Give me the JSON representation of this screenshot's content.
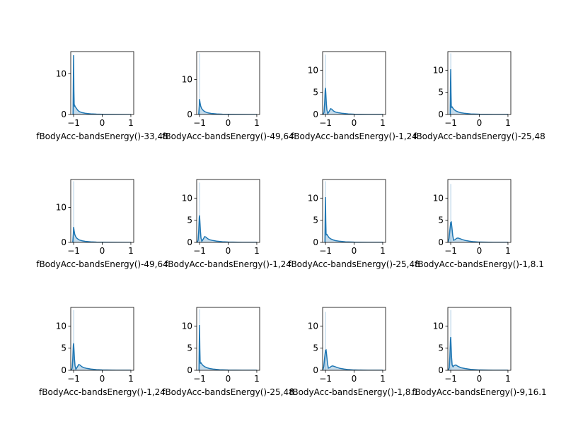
{
  "figure": {
    "background": "#ffffff"
  },
  "colors": {
    "line": "#1f77b4",
    "fill": "#1f77b4",
    "axes": "#000000"
  },
  "chart_data": [
    {
      "type": "area",
      "xlabel": "fBodyAcc-bandsEnergy()-33,48",
      "xlim": [
        -1.1,
        1.1
      ],
      "ylim": [
        0,
        15.5
      ],
      "xticks": [
        -1,
        0,
        1
      ],
      "yticks": [
        0,
        10
      ],
      "x": [
        -1.02,
        -1.01,
        -1.0,
        -0.99,
        -0.98,
        -0.97,
        -0.96,
        -0.95,
        -0.9,
        -0.85,
        -0.8,
        -0.7,
        -0.6,
        -0.5,
        -0.4,
        -0.2,
        0.0,
        0.5,
        1.0
      ],
      "y": [
        0,
        8,
        14.6,
        6,
        2.4,
        2.1,
        2.2,
        2.0,
        1.5,
        1.0,
        0.7,
        0.45,
        0.3,
        0.22,
        0.15,
        0.08,
        0.05,
        0.02,
        0.01
      ],
      "hist": {
        "width": 0.02,
        "bars": [
          [
            -1.0,
            14.6
          ]
        ]
      }
    },
    {
      "type": "area",
      "xlabel": "fBodyAcc-bandsEnergy()-49,64",
      "xlim": [
        -1.1,
        1.1
      ],
      "ylim": [
        0,
        18
      ],
      "xticks": [
        -1,
        0,
        1
      ],
      "yticks": [
        0,
        10
      ],
      "x": [
        -1.03,
        -1.01,
        -1.0,
        -0.98,
        -0.96,
        -0.93,
        -0.9,
        -0.85,
        -0.8,
        -0.7,
        -0.6,
        -0.4,
        -0.2,
        0.0,
        0.5,
        1.0
      ],
      "y": [
        0,
        2.5,
        4.4,
        3.2,
        2.4,
        1.8,
        1.4,
        1.0,
        0.75,
        0.45,
        0.3,
        0.15,
        0.08,
        0.05,
        0.02,
        0.01
      ],
      "hist": {
        "width": 0.02,
        "bars": [
          [
            -1.0,
            17.5
          ]
        ]
      }
    },
    {
      "type": "area",
      "xlabel": "fBodyAcc-bandsEnergy()-1,24",
      "xlim": [
        -1.1,
        1.1
      ],
      "ylim": [
        0,
        14.2
      ],
      "xticks": [
        -1,
        0,
        1
      ],
      "yticks": [
        0,
        5,
        10
      ],
      "x": [
        -1.08,
        -1.05,
        -1.03,
        -1.01,
        -1.0,
        -0.99,
        -0.97,
        -0.95,
        -0.92,
        -0.88,
        -0.82,
        -0.78,
        -0.72,
        -0.65,
        -0.55,
        -0.4,
        -0.2,
        0.0,
        0.5,
        1.0
      ],
      "y": [
        0,
        0.5,
        2.5,
        5.5,
        6.0,
        5.0,
        2.5,
        1.0,
        0.2,
        0.6,
        1.3,
        1.2,
        0.8,
        0.55,
        0.4,
        0.25,
        0.12,
        0.06,
        0.02,
        0.01
      ],
      "hist": {
        "width": 0.02,
        "bars": [
          [
            -1.0,
            13.5
          ]
        ]
      }
    },
    {
      "type": "area",
      "xlabel": "fBodyAcc-bandsEnergy()-25,48",
      "xlim": [
        -1.1,
        1.1
      ],
      "ylim": [
        0,
        14.2
      ],
      "xticks": [
        -1,
        0,
        1
      ],
      "yticks": [
        0,
        5,
        10
      ],
      "x": [
        -1.02,
        -1.01,
        -1.0,
        -0.99,
        -0.98,
        -0.97,
        -0.95,
        -0.92,
        -0.88,
        -0.82,
        -0.75,
        -0.65,
        -0.5,
        -0.3,
        0.0,
        0.5,
        1.0
      ],
      "y": [
        0,
        6,
        10.2,
        5,
        2.0,
        1.6,
        1.7,
        1.4,
        1.1,
        0.8,
        0.6,
        0.4,
        0.25,
        0.12,
        0.05,
        0.02,
        0.01
      ],
      "hist": {
        "width": 0.02,
        "bars": [
          [
            -1.0,
            13.8
          ]
        ]
      }
    },
    {
      "type": "area",
      "xlabel": "fBodyAcc-bandsEnergy()-49,64",
      "xlim": [
        -1.1,
        1.1
      ],
      "ylim": [
        0,
        18
      ],
      "xticks": [
        -1,
        0,
        1
      ],
      "yticks": [
        0,
        10
      ],
      "x": [
        -1.03,
        -1.01,
        -1.0,
        -0.98,
        -0.96,
        -0.93,
        -0.9,
        -0.85,
        -0.8,
        -0.7,
        -0.6,
        -0.4,
        -0.2,
        0.0,
        0.5,
        1.0
      ],
      "y": [
        0,
        2.5,
        4.4,
        3.2,
        2.3,
        1.7,
        1.3,
        0.95,
        0.7,
        0.45,
        0.3,
        0.15,
        0.08,
        0.05,
        0.02,
        0.01
      ],
      "hist": {
        "width": 0.02,
        "bars": [
          [
            -1.0,
            17.5
          ]
        ]
      }
    },
    {
      "type": "area",
      "xlabel": "fBodyAcc-bandsEnergy()-1,24",
      "xlim": [
        -1.1,
        1.1
      ],
      "ylim": [
        0,
        14.2
      ],
      "xticks": [
        -1,
        0,
        1
      ],
      "yticks": [
        0,
        5,
        10
      ],
      "x": [
        -1.08,
        -1.05,
        -1.03,
        -1.01,
        -1.0,
        -0.99,
        -0.97,
        -0.95,
        -0.92,
        -0.88,
        -0.82,
        -0.78,
        -0.72,
        -0.65,
        -0.55,
        -0.4,
        -0.2,
        0.0,
        0.5,
        1.0
      ],
      "y": [
        0,
        0.5,
        2.5,
        5.6,
        6.1,
        5.0,
        2.6,
        1.0,
        0.25,
        0.65,
        1.3,
        1.2,
        0.85,
        0.6,
        0.45,
        0.28,
        0.14,
        0.07,
        0.02,
        0.01
      ],
      "hist": {
        "width": 0.02,
        "bars": [
          [
            -1.0,
            13.5
          ]
        ]
      }
    },
    {
      "type": "area",
      "xlabel": "fBodyAcc-bandsEnergy()-25,48",
      "xlim": [
        -1.1,
        1.1
      ],
      "ylim": [
        0,
        14.2
      ],
      "xticks": [
        -1,
        0,
        1
      ],
      "yticks": [
        0,
        5,
        10
      ],
      "x": [
        -1.02,
        -1.01,
        -1.0,
        -0.99,
        -0.98,
        -0.97,
        -0.95,
        -0.92,
        -0.88,
        -0.82,
        -0.75,
        -0.65,
        -0.5,
        -0.3,
        0.0,
        0.5,
        1.0
      ],
      "y": [
        0,
        6,
        10.2,
        5,
        2.0,
        1.7,
        1.8,
        1.5,
        1.1,
        0.8,
        0.6,
        0.4,
        0.25,
        0.12,
        0.05,
        0.02,
        0.01
      ],
      "hist": {
        "width": 0.02,
        "bars": [
          [
            -1.0,
            13.8
          ]
        ]
      }
    },
    {
      "type": "area",
      "xlabel": "fBodyAcc-bandsEnergy()-1,8.1",
      "xlim": [
        -1.1,
        1.1
      ],
      "ylim": [
        0,
        14.2
      ],
      "xticks": [
        -1,
        0,
        1
      ],
      "yticks": [
        0,
        5,
        10
      ],
      "x": [
        -1.1,
        -1.06,
        -1.03,
        -1.0,
        -0.98,
        -0.96,
        -0.93,
        -0.9,
        -0.85,
        -0.8,
        -0.75,
        -0.68,
        -0.6,
        -0.5,
        -0.35,
        -0.2,
        0.0,
        0.5,
        1.0
      ],
      "y": [
        0,
        0.8,
        2.8,
        4.5,
        4.6,
        3.5,
        1.6,
        0.5,
        0.6,
        0.9,
        1.0,
        0.85,
        0.65,
        0.45,
        0.28,
        0.15,
        0.07,
        0.02,
        0.01
      ],
      "hist": {
        "width": 0.02,
        "bars": [
          [
            -1.0,
            13.2
          ]
        ]
      }
    },
    {
      "type": "area",
      "xlabel": "fBodyAcc-bandsEnergy()-1,24",
      "xlim": [
        -1.1,
        1.1
      ],
      "ylim": [
        0,
        14.2
      ],
      "xticks": [
        -1,
        0,
        1
      ],
      "yticks": [
        0,
        5,
        10
      ],
      "x": [
        -1.08,
        -1.05,
        -1.03,
        -1.01,
        -1.0,
        -0.99,
        -0.97,
        -0.95,
        -0.92,
        -0.88,
        -0.82,
        -0.78,
        -0.72,
        -0.65,
        -0.55,
        -0.4,
        -0.2,
        0.0,
        0.5,
        1.0
      ],
      "y": [
        0,
        0.5,
        2.5,
        5.6,
        6.1,
        5.0,
        2.6,
        1.0,
        0.25,
        0.65,
        1.3,
        1.2,
        0.85,
        0.6,
        0.45,
        0.28,
        0.14,
        0.07,
        0.02,
        0.01
      ],
      "hist": {
        "width": 0.02,
        "bars": [
          [
            -1.0,
            13.6
          ]
        ]
      }
    },
    {
      "type": "area",
      "xlabel": "fBodyAcc-bandsEnergy()-25,48",
      "xlim": [
        -1.1,
        1.1
      ],
      "ylim": [
        0,
        14.2
      ],
      "xticks": [
        -1,
        0,
        1
      ],
      "yticks": [
        0,
        5,
        10
      ],
      "x": [
        -1.02,
        -1.01,
        -1.0,
        -0.99,
        -0.98,
        -0.97,
        -0.95,
        -0.92,
        -0.88,
        -0.82,
        -0.75,
        -0.65,
        -0.5,
        -0.3,
        0.0,
        0.5,
        1.0
      ],
      "y": [
        0,
        6,
        10.2,
        5,
        2.0,
        1.6,
        1.7,
        1.4,
        1.1,
        0.8,
        0.6,
        0.4,
        0.25,
        0.12,
        0.05,
        0.02,
        0.01
      ],
      "hist": {
        "width": 0.02,
        "bars": [
          [
            -1.0,
            13.8
          ]
        ]
      }
    },
    {
      "type": "area",
      "xlabel": "fBodyAcc-bandsEnergy()-1,8.1",
      "xlim": [
        -1.1,
        1.1
      ],
      "ylim": [
        0,
        14.2
      ],
      "xticks": [
        -1,
        0,
        1
      ],
      "yticks": [
        0,
        5,
        10
      ],
      "x": [
        -1.1,
        -1.06,
        -1.03,
        -1.0,
        -0.98,
        -0.96,
        -0.93,
        -0.9,
        -0.85,
        -0.8,
        -0.75,
        -0.68,
        -0.6,
        -0.5,
        -0.35,
        -0.2,
        0.0,
        0.5,
        1.0
      ],
      "y": [
        0,
        0.8,
        2.8,
        4.5,
        4.6,
        3.5,
        1.6,
        0.5,
        0.6,
        0.9,
        1.0,
        0.85,
        0.65,
        0.45,
        0.28,
        0.15,
        0.07,
        0.02,
        0.01
      ],
      "hist": {
        "width": 0.02,
        "bars": [
          [
            -1.0,
            13.2
          ]
        ]
      }
    },
    {
      "type": "area",
      "xlabel": "fBodyAcc-bandsEnergy()-9,16.1",
      "xlim": [
        -1.1,
        1.1
      ],
      "ylim": [
        0,
        14.2
      ],
      "xticks": [
        -1,
        0,
        1
      ],
      "yticks": [
        0,
        5,
        10
      ],
      "x": [
        -1.08,
        -1.05,
        -1.03,
        -1.01,
        -1.0,
        -0.99,
        -0.97,
        -0.95,
        -0.92,
        -0.88,
        -0.82,
        -0.75,
        -0.65,
        -0.5,
        -0.3,
        0.0,
        0.5,
        1.0
      ],
      "y": [
        0,
        0.6,
        3.0,
        6.8,
        7.5,
        6.0,
        3.0,
        1.2,
        0.8,
        1.1,
        1.2,
        0.9,
        0.6,
        0.4,
        0.2,
        0.07,
        0.02,
        0.01
      ],
      "hist": {
        "width": 0.02,
        "bars": [
          [
            -1.0,
            13.6
          ]
        ]
      }
    }
  ]
}
